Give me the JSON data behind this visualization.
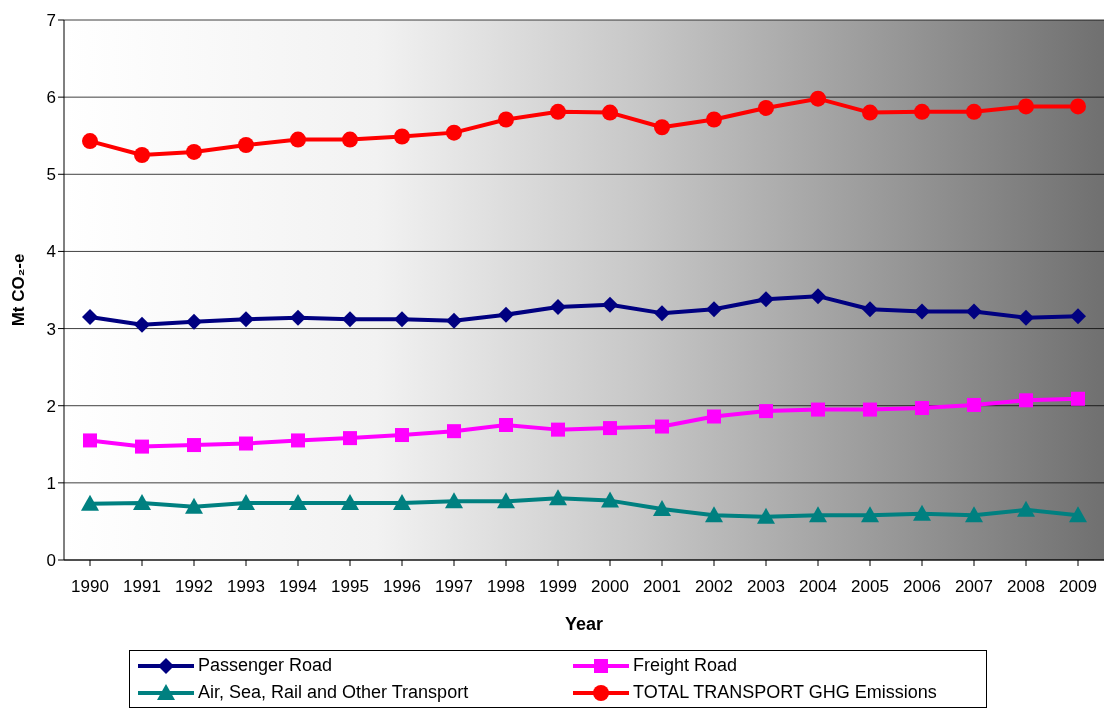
{
  "chart_data": {
    "type": "line",
    "xlabel": "Year",
    "ylabel": "Mt CO₂-e",
    "categories": [
      "1990",
      "1991",
      "1992",
      "1993",
      "1994",
      "1995",
      "1996",
      "1997",
      "1998",
      "1999",
      "2000",
      "2001",
      "2002",
      "2003",
      "2004",
      "2005",
      "2006",
      "2007",
      "2008",
      "2009"
    ],
    "series": [
      {
        "name": "Passenger Road",
        "color": "#000080",
        "marker": "diamond",
        "values": [
          3.15,
          3.05,
          3.09,
          3.12,
          3.14,
          3.12,
          3.12,
          3.1,
          3.18,
          3.28,
          3.31,
          3.2,
          3.25,
          3.38,
          3.42,
          3.25,
          3.22,
          3.22,
          3.14,
          3.16
        ]
      },
      {
        "name": "Freight Road",
        "color": "#ff00ff",
        "marker": "square",
        "values": [
          1.55,
          1.47,
          1.49,
          1.51,
          1.55,
          1.58,
          1.62,
          1.67,
          1.75,
          1.69,
          1.71,
          1.73,
          1.86,
          1.93,
          1.95,
          1.95,
          1.97,
          2.01,
          2.07,
          2.09
        ]
      },
      {
        "name": "Air, Sea, Rail and Other Transport",
        "color": "#008080",
        "marker": "triangle",
        "values": [
          0.73,
          0.74,
          0.69,
          0.74,
          0.74,
          0.74,
          0.74,
          0.76,
          0.76,
          0.8,
          0.77,
          0.66,
          0.58,
          0.56,
          0.58,
          0.58,
          0.6,
          0.58,
          0.65,
          0.58
        ]
      },
      {
        "name": "TOTAL TRANSPORT GHG Emissions",
        "color": "#ff0000",
        "marker": "circle",
        "values": [
          5.43,
          5.25,
          5.29,
          5.38,
          5.45,
          5.45,
          5.49,
          5.54,
          5.71,
          5.81,
          5.8,
          5.61,
          5.71,
          5.86,
          5.98,
          5.8,
          5.81,
          5.81,
          5.88,
          5.88
        ]
      }
    ],
    "ylim": [
      0,
      7
    ],
    "yticks": [
      0,
      1,
      2,
      3,
      4,
      5,
      6,
      7
    ],
    "grid": "y",
    "legend": "bottom",
    "line_style": "solid"
  }
}
